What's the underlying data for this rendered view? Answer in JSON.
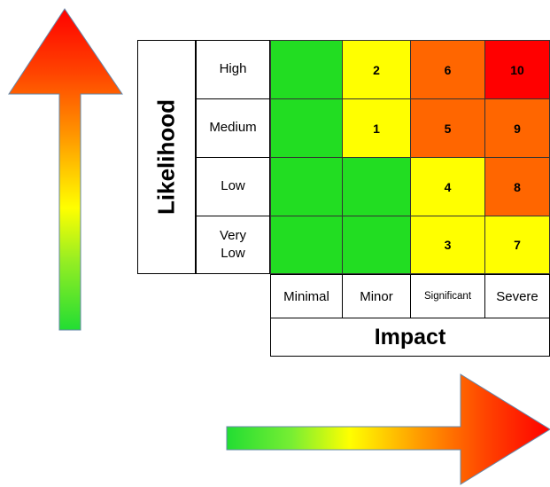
{
  "axes": {
    "likelihood_title": "Likelihood",
    "impact_title": "Impact"
  },
  "rows": [
    {
      "label": "High"
    },
    {
      "label": "Medium"
    },
    {
      "label": "Low"
    },
    {
      "label": "Very\nLow"
    }
  ],
  "columns": [
    {
      "label": "Minimal"
    },
    {
      "label": "Minor"
    },
    {
      "label": "Significant"
    },
    {
      "label": "Severe"
    }
  ],
  "cells": [
    [
      {
        "value": "",
        "color": "#22dd22"
      },
      {
        "value": "2",
        "color": "#ffff00"
      },
      {
        "value": "6",
        "color": "#ff6600"
      },
      {
        "value": "10",
        "color": "#ff0000"
      }
    ],
    [
      {
        "value": "",
        "color": "#22dd22"
      },
      {
        "value": "1",
        "color": "#ffff00"
      },
      {
        "value": "5",
        "color": "#ff6600"
      },
      {
        "value": "9",
        "color": "#ff6600"
      }
    ],
    [
      {
        "value": "",
        "color": "#22dd22"
      },
      {
        "value": "",
        "color": "#22dd22"
      },
      {
        "value": "4",
        "color": "#ffff00"
      },
      {
        "value": "8",
        "color": "#ff6600"
      }
    ],
    [
      {
        "value": "",
        "color": "#22dd22"
      },
      {
        "value": "",
        "color": "#22dd22"
      },
      {
        "value": "3",
        "color": "#ffff00"
      },
      {
        "value": "7",
        "color": "#ffff00"
      }
    ]
  ],
  "colors": {
    "green": "#22dd22",
    "yellow": "#ffff00",
    "orange": "#ff6600",
    "red": "#ff0000"
  }
}
